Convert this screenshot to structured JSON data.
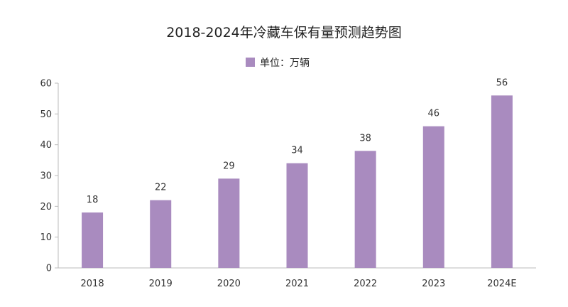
{
  "chart_data": {
    "type": "bar",
    "title": "2018-2024年冷藏车保有量预测趋势图",
    "categories": [
      "2018",
      "2019",
      "2020",
      "2021",
      "2022",
      "2023",
      "2024E"
    ],
    "series": [
      {
        "name": "单位：万辆",
        "values": [
          18,
          22,
          29,
          34,
          38,
          46,
          56
        ]
      }
    ],
    "data_labels": [
      "18",
      "22",
      "29",
      "34",
      "38",
      "46",
      "56"
    ],
    "y_ticks": [
      "0",
      "10",
      "20",
      "30",
      "40",
      "50",
      "60"
    ],
    "ylim": [
      0,
      60
    ],
    "xlabel": "",
    "ylabel": "",
    "grid": false,
    "legend_position": "top-center",
    "bar_color": "#a98bbf",
    "axis_color": "#bbbbbb"
  }
}
